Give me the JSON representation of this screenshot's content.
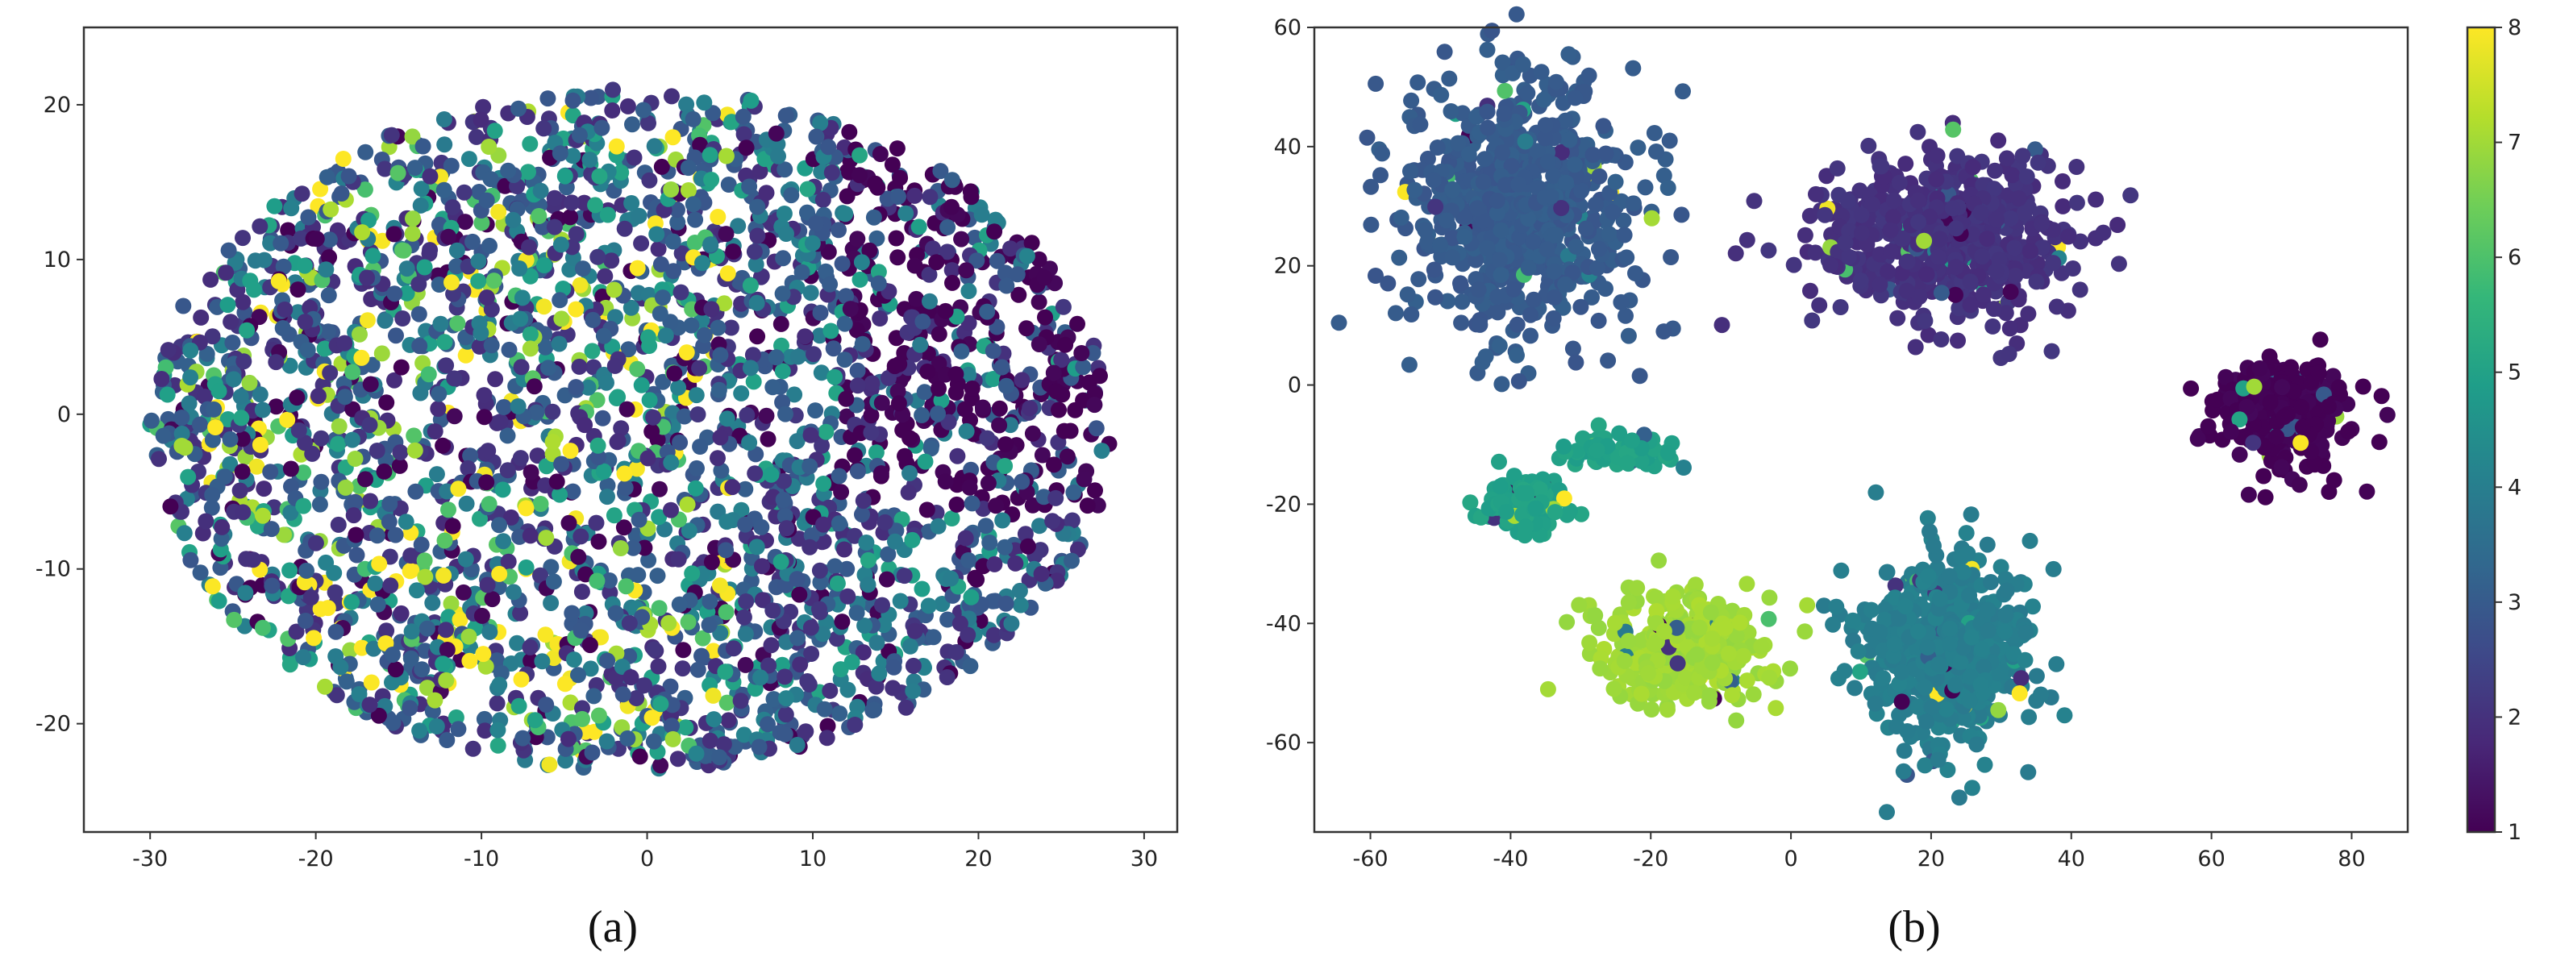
{
  "colormap": "viridis",
  "colormap_stops": [
    "#440154",
    "#482878",
    "#3e4989",
    "#31688e",
    "#26828e",
    "#1f9e89",
    "#35b779",
    "#6ece58",
    "#b5de2b",
    "#fde725"
  ],
  "colorbar": {
    "min": 1,
    "max": 8,
    "ticks": [
      "1",
      "2",
      "3",
      "4",
      "5",
      "6",
      "7",
      "8"
    ]
  },
  "chart_data": [
    {
      "type": "scatter",
      "caption": "(a)",
      "xlim": [
        -34,
        32
      ],
      "ylim": [
        -27,
        25
      ],
      "xticks": [
        "-30",
        "-20",
        "-10",
        "0",
        "10",
        "20",
        "30"
      ],
      "yticks": [
        "-20",
        "-10",
        "0",
        "10",
        "20"
      ],
      "point_count": 3000,
      "cloud": {
        "center": [
          -1,
          -1
        ],
        "radius": [
          29,
          22
        ]
      },
      "color_trend": "class 1 concentrated upper-right; classes 6-8 scattered left-center; classes 2-3 everywhere"
    },
    {
      "type": "scatter",
      "caption": "(b)",
      "xlim": [
        -68,
        88
      ],
      "ylim": [
        -75,
        60
      ],
      "xticks": [
        "-60",
        "-40",
        "-20",
        "0",
        "20",
        "40",
        "60",
        "80"
      ],
      "yticks": [
        "-60",
        "-40",
        "-20",
        "0",
        "20",
        "40",
        "60"
      ],
      "clusters": [
        {
          "class": 3,
          "center": [
            -38,
            30
          ],
          "spread": [
            11,
            14
          ],
          "count": 700
        },
        {
          "class": 2,
          "center": [
            22,
            25
          ],
          "spread": [
            12,
            9
          ],
          "count": 600
        },
        {
          "class": 1,
          "center": [
            70,
            -5
          ],
          "spread": [
            6,
            6
          ],
          "count": 300
        },
        {
          "class": 5,
          "center": [
            -38,
            -20
          ],
          "spread": [
            4,
            3
          ],
          "count": 150
        },
        {
          "class": 5,
          "center": [
            -24,
            -11
          ],
          "spread": [
            5,
            2
          ],
          "count": 70
        },
        {
          "class": 7,
          "center": [
            -15,
            -44
          ],
          "spread": [
            8,
            6
          ],
          "count": 350
        },
        {
          "class": 4,
          "center": [
            22,
            -45
          ],
          "spread": [
            8,
            11
          ],
          "count": 550
        }
      ]
    }
  ]
}
